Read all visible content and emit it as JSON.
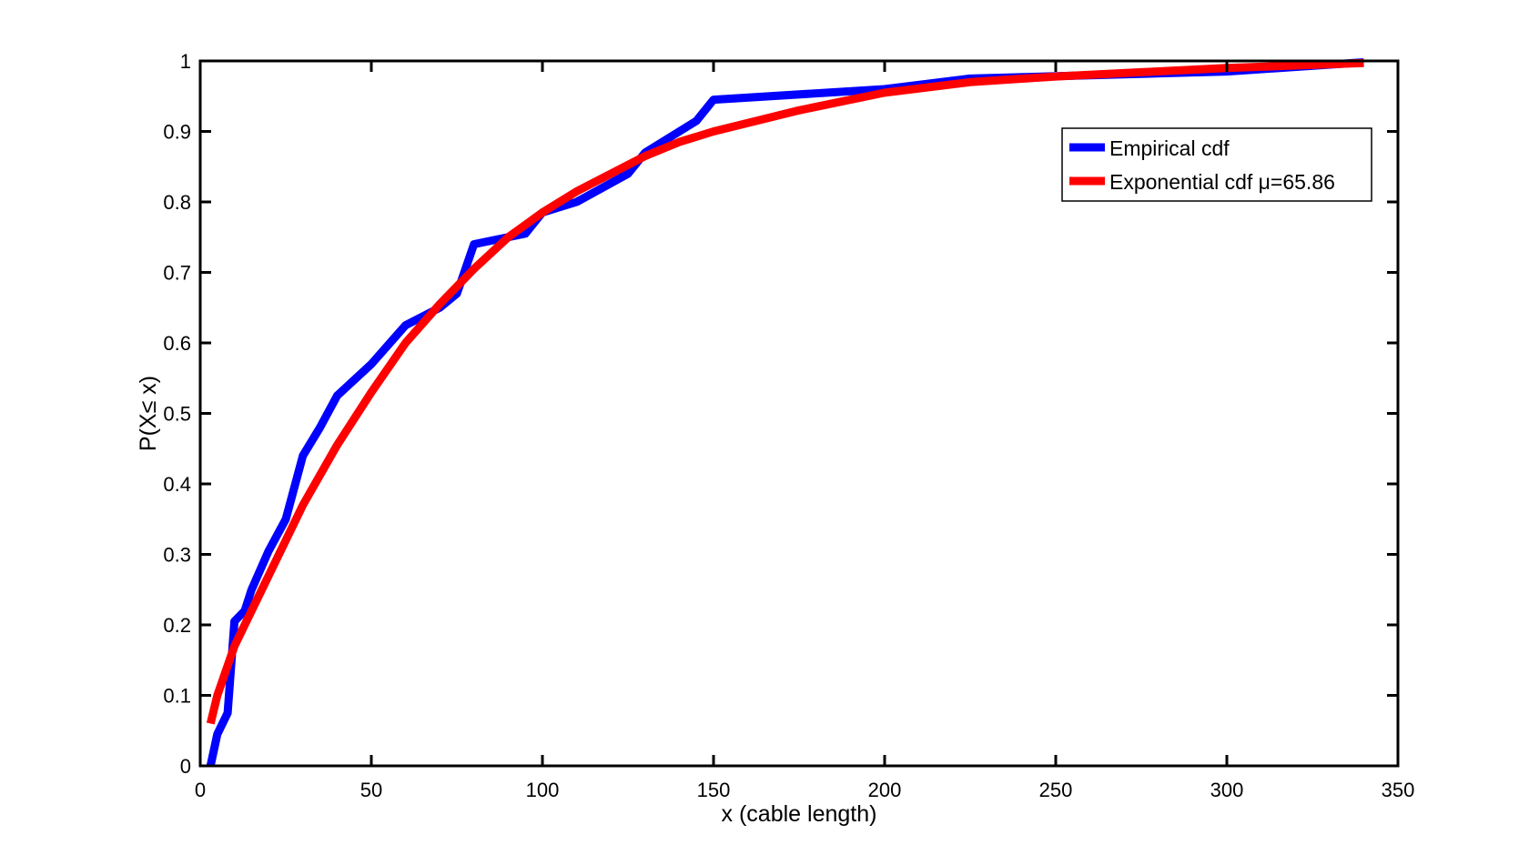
{
  "chart_data": {
    "type": "line",
    "title": "",
    "xlabel": "x (cable length)",
    "ylabel": "P(X≤ x)",
    "xlim": [
      0,
      350
    ],
    "ylim": [
      0,
      1
    ],
    "xticks": [
      0,
      50,
      100,
      150,
      200,
      250,
      300,
      350
    ],
    "yticks": [
      0,
      0.1,
      0.2,
      0.3,
      0.4,
      0.5,
      0.6,
      0.7,
      0.8,
      0.9,
      1
    ],
    "xtick_labels": [
      "0",
      "50",
      "100",
      "150",
      "200",
      "250",
      "300",
      "350"
    ],
    "ytick_labels": [
      "0",
      "0.1",
      "0.2",
      "0.3",
      "0.4",
      "0.5",
      "0.6",
      "0.7",
      "0.8",
      "0.9",
      "1"
    ],
    "grid": false,
    "legend_position": "top-right",
    "series": [
      {
        "name": "Empirical cdf",
        "color": "#0000ff",
        "x": [
          3,
          5,
          8,
          10,
          13,
          15,
          20,
          25,
          30,
          35,
          40,
          50,
          60,
          70,
          75,
          80,
          95,
          100,
          110,
          125,
          130,
          145,
          150,
          200,
          225,
          300,
          340
        ],
        "y": [
          0,
          0.045,
          0.075,
          0.205,
          0.22,
          0.25,
          0.305,
          0.35,
          0.44,
          0.48,
          0.525,
          0.57,
          0.625,
          0.65,
          0.67,
          0.74,
          0.755,
          0.785,
          0.8,
          0.84,
          0.87,
          0.915,
          0.945,
          0.96,
          0.975,
          0.985,
          0.998
        ]
      },
      {
        "name": "Exponential cdf μ=65.86",
        "color": "#ff0000",
        "x": [
          3,
          5,
          10,
          15,
          20,
          30,
          40,
          50,
          60,
          70,
          80,
          90,
          100,
          110,
          120,
          130,
          140,
          150,
          175,
          200,
          225,
          250,
          275,
          300,
          340
        ],
        "y": [
          0.06,
          0.1,
          0.17,
          0.22,
          0.27,
          0.37,
          0.455,
          0.53,
          0.6,
          0.655,
          0.705,
          0.75,
          0.785,
          0.815,
          0.84,
          0.865,
          0.885,
          0.9,
          0.93,
          0.955,
          0.97,
          0.978,
          0.984,
          0.99,
          0.997
        ]
      }
    ]
  }
}
